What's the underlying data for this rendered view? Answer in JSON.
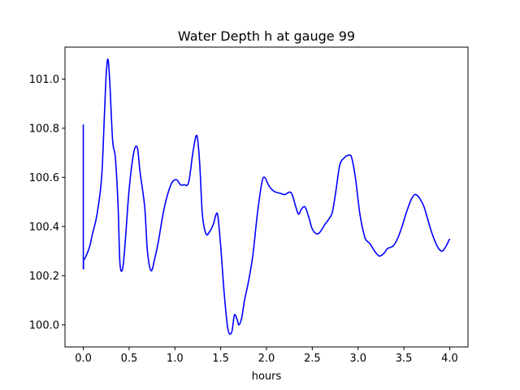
{
  "chart_data": {
    "type": "line",
    "title": "Water Depth h at gauge 99",
    "xlabel": "hours",
    "ylabel": "",
    "xlim": [
      -0.2,
      4.2
    ],
    "ylim": [
      99.91,
      101.13
    ],
    "xticks": [
      0.0,
      0.5,
      1.0,
      1.5,
      2.0,
      2.5,
      3.0,
      3.5,
      4.0
    ],
    "xtick_labels": [
      "0.0",
      "0.5",
      "1.0",
      "1.5",
      "2.0",
      "2.5",
      "3.0",
      "3.5",
      "4.0"
    ],
    "yticks": [
      100.0,
      100.2,
      100.4,
      100.6,
      100.8,
      101.0
    ],
    "ytick_labels": [
      "100.0",
      "100.2",
      "100.4",
      "100.6",
      "100.8",
      "101.0"
    ],
    "grid": false,
    "line_color": "#0000ff",
    "series": [
      {
        "x": [
          0.0,
          0.0,
          0.005,
          0.03,
          0.07,
          0.1,
          0.15,
          0.2,
          0.23,
          0.25,
          0.27,
          0.29,
          0.32,
          0.35,
          0.38,
          0.4,
          0.43,
          0.46,
          0.5,
          0.55,
          0.59,
          0.62,
          0.67,
          0.7,
          0.74,
          0.78,
          0.82,
          0.87,
          0.92,
          0.97,
          1.02,
          1.06,
          1.1,
          1.15,
          1.2,
          1.24,
          1.27,
          1.3,
          1.34,
          1.38,
          1.42,
          1.45,
          1.47,
          1.5,
          1.54,
          1.58,
          1.62,
          1.65,
          1.68,
          1.7,
          1.73,
          1.76,
          1.8,
          1.85,
          1.9,
          1.95,
          1.98,
          2.02,
          2.06,
          2.1,
          2.15,
          2.2,
          2.25,
          2.28,
          2.32,
          2.35,
          2.38,
          2.42,
          2.46,
          2.5,
          2.55,
          2.59,
          2.64,
          2.68,
          2.72,
          2.76,
          2.8,
          2.85,
          2.9,
          2.93,
          2.97,
          3.02,
          3.07,
          3.1,
          3.13,
          3.18,
          3.23,
          3.28,
          3.32,
          3.38,
          3.43,
          3.48,
          3.53,
          3.58,
          3.62,
          3.65,
          3.68,
          3.72,
          3.76,
          3.8,
          3.84,
          3.88,
          3.92,
          3.96,
          4.0
        ],
        "y": [
          100.815,
          100.27,
          100.265,
          100.28,
          100.32,
          100.37,
          100.45,
          100.6,
          100.85,
          101.02,
          101.08,
          100.98,
          100.75,
          100.68,
          100.48,
          100.25,
          100.23,
          100.35,
          100.55,
          100.7,
          100.72,
          100.62,
          100.48,
          100.3,
          100.22,
          100.27,
          100.34,
          100.45,
          100.53,
          100.58,
          100.59,
          100.57,
          100.57,
          100.58,
          100.71,
          100.77,
          100.66,
          100.45,
          100.37,
          100.38,
          100.41,
          100.45,
          100.44,
          100.32,
          100.12,
          99.98,
          99.97,
          100.04,
          100.02,
          100.0,
          100.03,
          100.1,
          100.17,
          100.28,
          100.45,
          100.58,
          100.6,
          100.57,
          100.55,
          100.54,
          100.535,
          100.53,
          100.54,
          100.53,
          100.48,
          100.45,
          100.47,
          100.48,
          100.44,
          100.39,
          100.37,
          100.38,
          100.41,
          100.43,
          100.46,
          100.55,
          100.65,
          100.68,
          100.69,
          100.68,
          100.6,
          100.45,
          100.36,
          100.34,
          100.33,
          100.3,
          100.28,
          100.29,
          100.31,
          100.32,
          100.35,
          100.4,
          100.46,
          100.51,
          100.53,
          100.525,
          100.51,
          100.48,
          100.43,
          100.38,
          100.34,
          100.31,
          100.3,
          100.32,
          100.35
        ]
      }
    ]
  }
}
